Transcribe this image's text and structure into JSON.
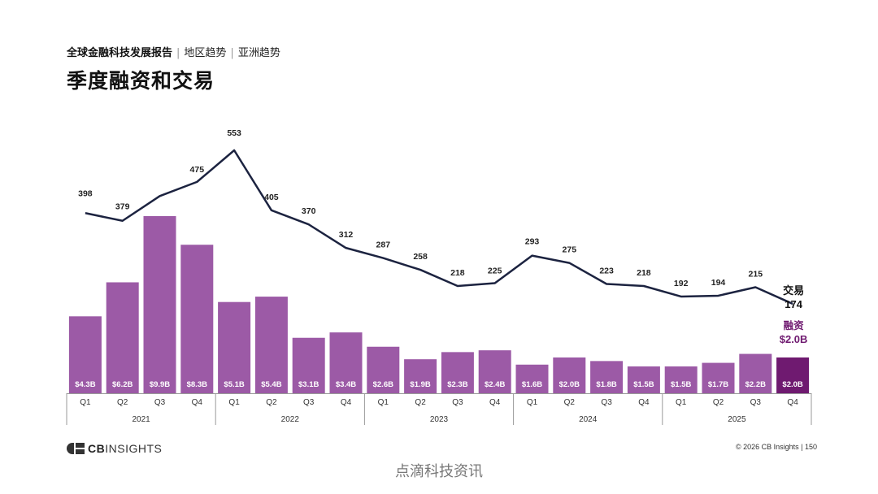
{
  "header": {
    "report": "全球金融科技发展报告",
    "section": "地区趋势",
    "subsection": "亚洲趋势"
  },
  "title": "季度融资和交易",
  "chart_data": {
    "type": "bar+line",
    "years": [
      "2021",
      "2022",
      "2023",
      "2024",
      "2025"
    ],
    "quarters": [
      "Q1",
      "Q2",
      "Q3",
      "Q4"
    ],
    "series": [
      {
        "name": "融资",
        "kind": "bar",
        "unit": "$B",
        "values": [
          4.3,
          6.2,
          9.9,
          8.3,
          5.1,
          5.4,
          3.1,
          3.4,
          2.6,
          1.9,
          2.3,
          2.4,
          1.6,
          2.0,
          1.8,
          1.5,
          1.5,
          1.7,
          2.2,
          2.0
        ],
        "labels": [
          "$4.3B",
          "$6.2B",
          "$9.9B",
          "$8.3B",
          "$5.1B",
          "$5.4B",
          "$3.1B",
          "$3.4B",
          "$2.6B",
          "$1.9B",
          "$2.3B",
          "$2.4B",
          "$1.6B",
          "$2.0B",
          "$1.8B",
          "$1.5B",
          "$1.5B",
          "$1.7B",
          "$2.2B",
          "$2.0B"
        ],
        "color": "#9c5aa6",
        "highlight_color": "#6f1a70"
      },
      {
        "name": "交易",
        "kind": "line",
        "values": [
          398,
          379,
          440,
          475,
          553,
          405,
          370,
          312,
          287,
          258,
          218,
          225,
          293,
          275,
          223,
          218,
          192,
          194,
          215,
          174
        ],
        "color": "#1c2340"
      }
    ],
    "end_labels": {
      "deals_name": "交易",
      "deals_value": "174",
      "funding_name": "融资",
      "funding_value": "$2.0B"
    }
  },
  "footer": {
    "logo_prefix": "CB",
    "logo_suffix": "INSIGHTS",
    "copyright": "© 2026 CB Insights  |  150",
    "watermark": "点滴科技资讯"
  }
}
